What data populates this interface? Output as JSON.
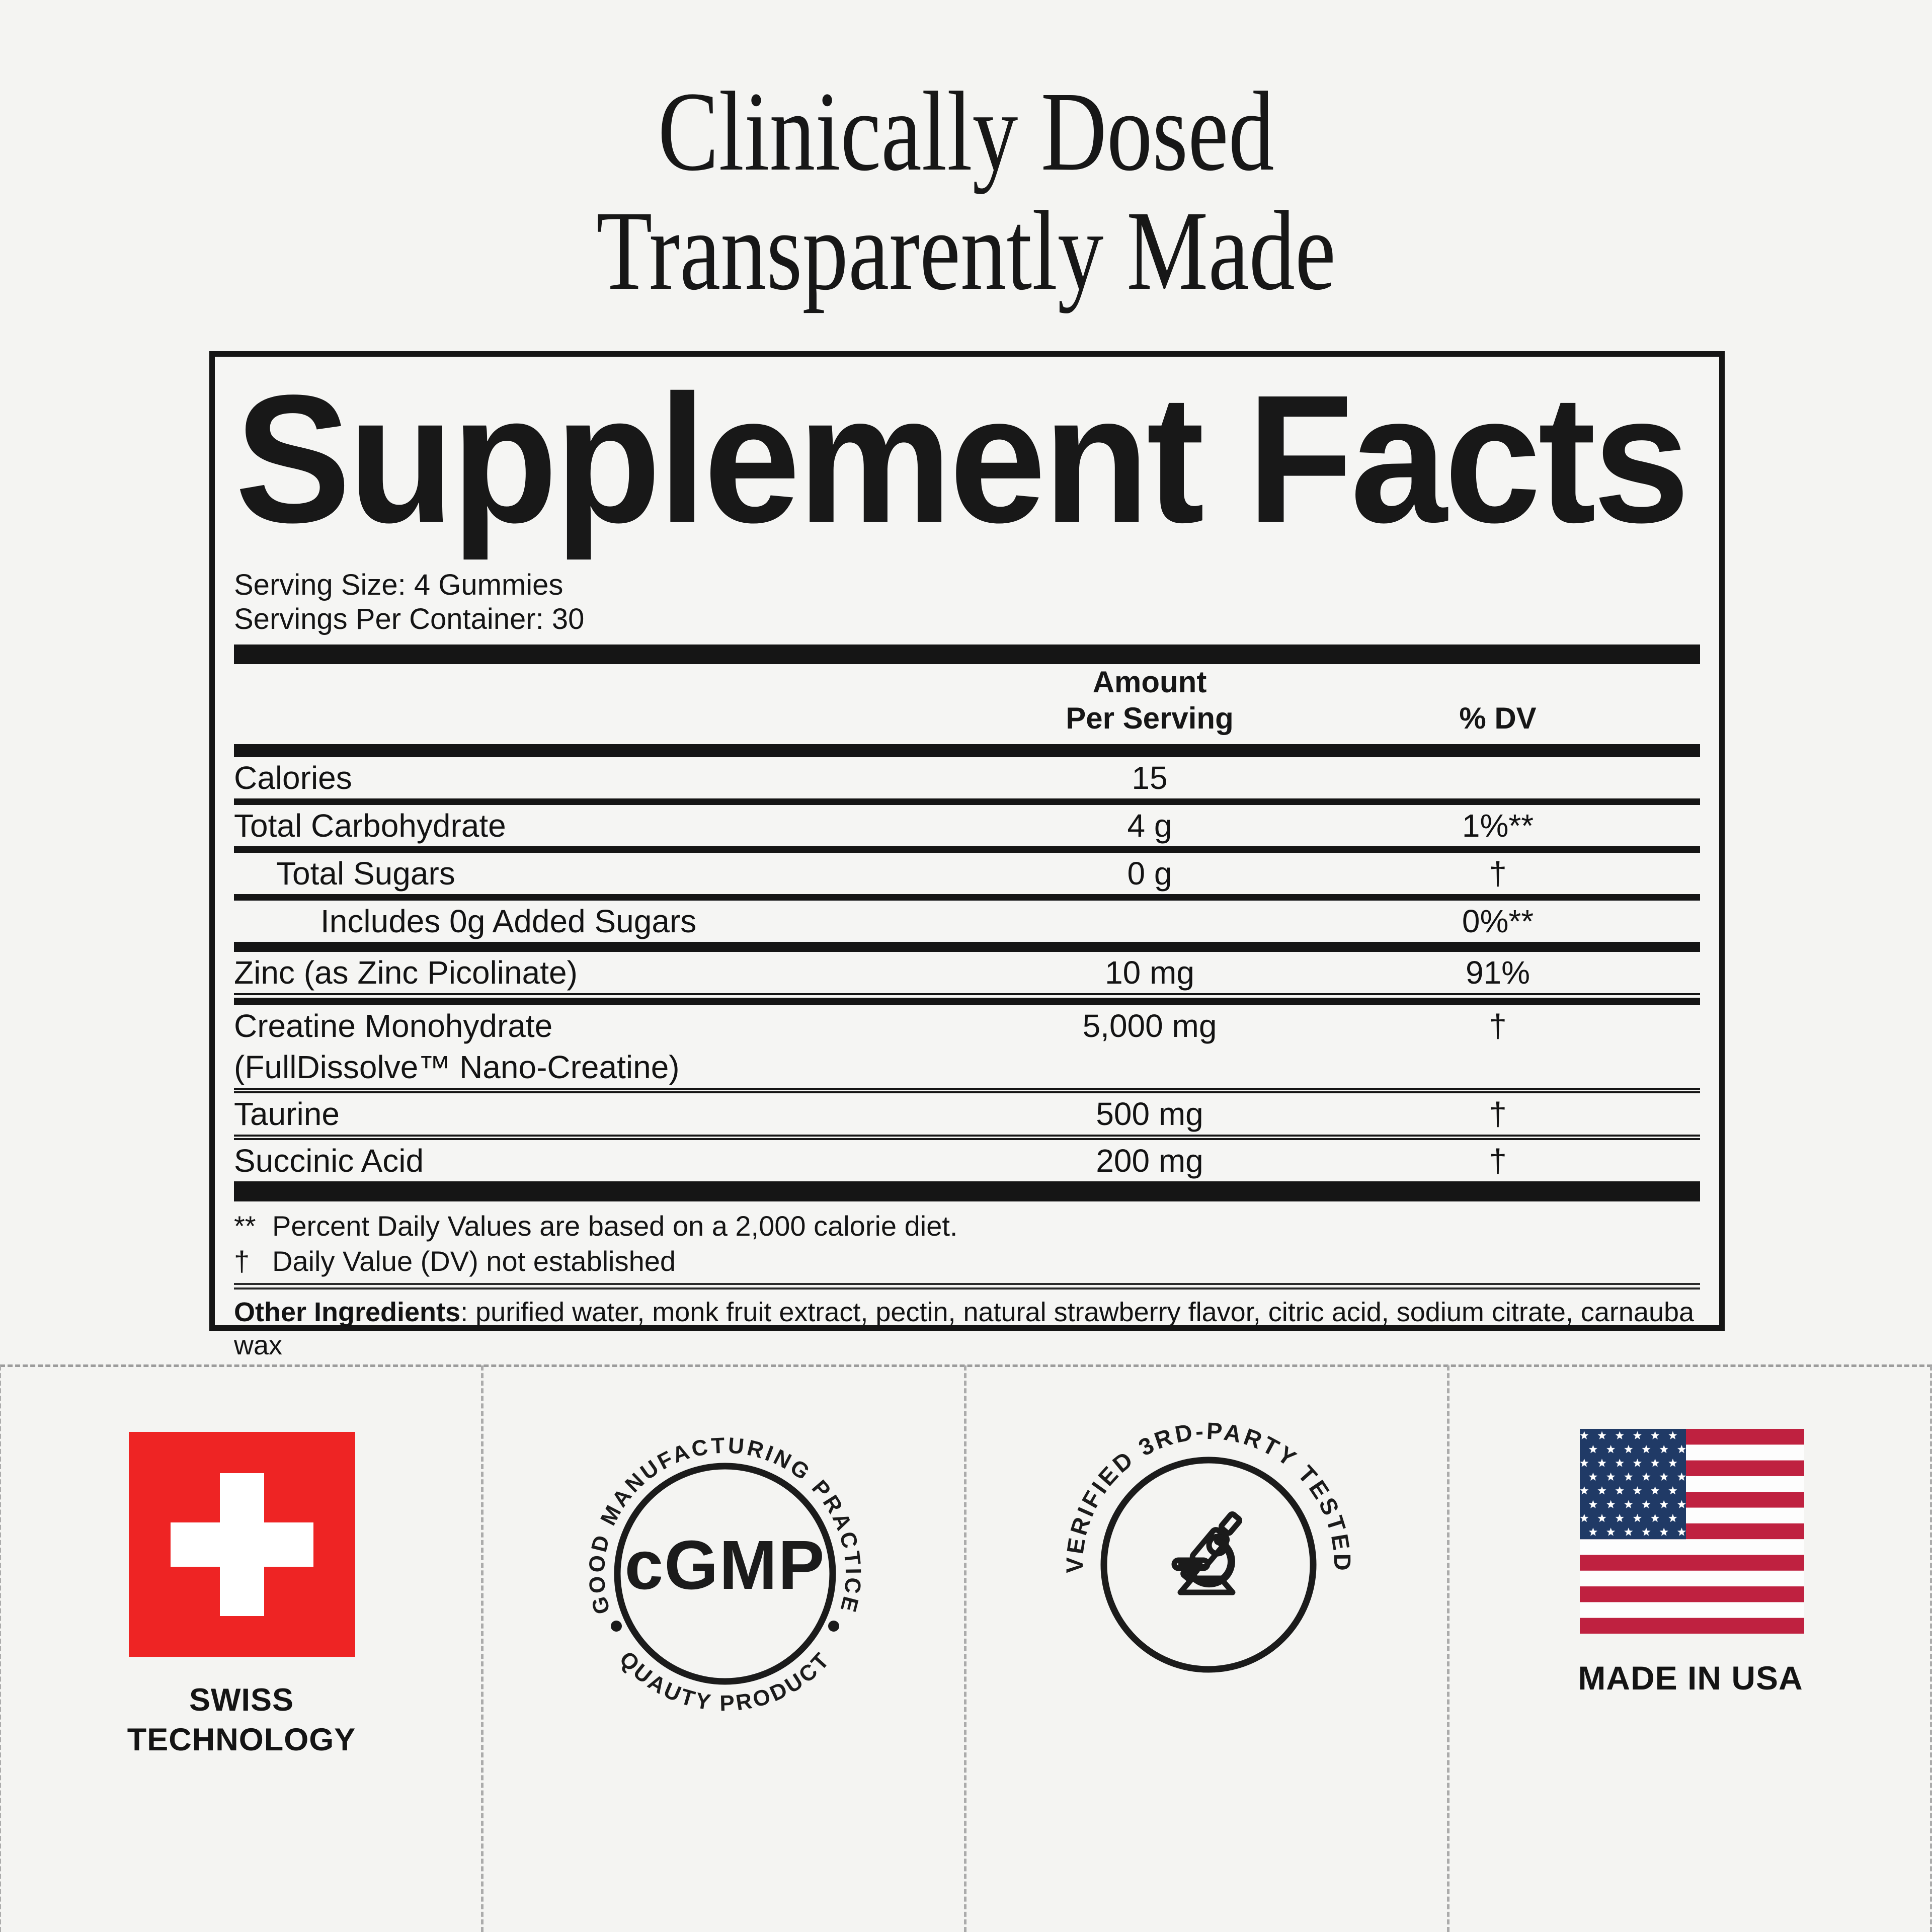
{
  "title": {
    "line1": "Clinically Dosed",
    "line2": "Transparently Made"
  },
  "panel": {
    "heading": "Supplement Facts",
    "serving_size": "Serving Size: 4 Gummies",
    "servings_per_container": "Servings Per Container: 30",
    "columns": {
      "amount_line1": "Amount",
      "amount_line2": "Per Serving",
      "dv": "% DV"
    },
    "rows": [
      {
        "name": "Calories",
        "amount": "15",
        "dv": "",
        "indent": 0,
        "sep": "thin"
      },
      {
        "name": "Total Carbohydrate",
        "amount": "4 g",
        "dv": "1%**",
        "indent": 0,
        "sep": "thin"
      },
      {
        "name": "Total Sugars",
        "amount": "0 g",
        "dv": "†",
        "indent": 1,
        "sep": "thin"
      },
      {
        "name": "Includes 0g Added Sugars",
        "amount": "",
        "dv": "0%**",
        "indent": 2,
        "sep": "med"
      },
      {
        "name": "Zinc (as Zinc Picolinate)",
        "amount": "10 mg",
        "dv": "91%",
        "indent": 0,
        "sep": "thick"
      },
      {
        "name": "Creatine Monohydrate",
        "name2": "(FullDissolve™ Nano-Creatine)",
        "amount": "5,000 mg",
        "dv": "†",
        "indent": 0,
        "sep": "dbl"
      },
      {
        "name": "Taurine",
        "amount": "500 mg",
        "dv": "†",
        "indent": 0,
        "sep": "dbl"
      },
      {
        "name": "Succinic Acid",
        "amount": "200 mg",
        "dv": "†",
        "indent": 0,
        "sep": "xl"
      }
    ],
    "footnotes": [
      {
        "symbol": "**",
        "text": "Percent Daily Values are based on a 2,000 calorie diet."
      },
      {
        "symbol": "†",
        "text": "Daily Value (DV) not established"
      }
    ],
    "other_ingredients_label": "Other Ingredients",
    "other_ingredients_text": ": purified water, monk fruit extract, pectin, natural strawberry flavor, citric acid, sodium citrate, carnauba wax"
  },
  "badges": {
    "swiss": {
      "label_line1": "SWISS",
      "label_line2": "TECHNOLOGY",
      "flag_red": "#EE2424"
    },
    "cgmp": {
      "arc_top": "GOOD MANUFACTURING PRACTICE",
      "arc_bottom": "QUAUTY PRODUCT",
      "center": "cGMP"
    },
    "tested": {
      "arc_top": "VERIFIED 3RD-PARTY TESTED"
    },
    "usa": {
      "label": "MADE IN USA",
      "flag_blue": "#203A66",
      "flag_red": "#BF2140",
      "flag_white": "#FDFDFD"
    }
  }
}
